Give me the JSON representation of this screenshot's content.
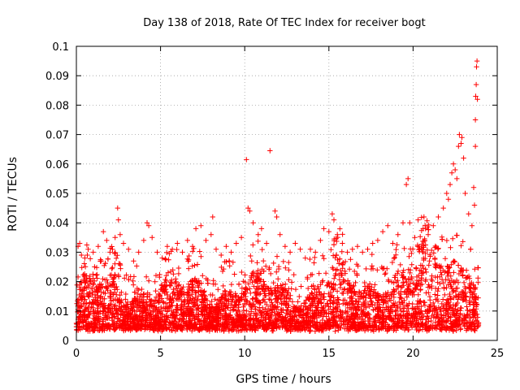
{
  "chart_data": {
    "type": "scatter",
    "title": "Day 138 of 2018, Rate Of TEC Index for receiver bogt",
    "xlabel": "GPS time / hours",
    "ylabel": "ROTI / TECUs",
    "xlim": [
      0,
      25
    ],
    "ylim": [
      0,
      0.1
    ],
    "xticks": [
      0,
      5,
      10,
      15,
      20,
      25
    ],
    "yticks": [
      0,
      0.01,
      0.02,
      0.03,
      0.04,
      0.05,
      0.06,
      0.07,
      0.08,
      0.09,
      0.1
    ],
    "xtick_labels": [
      "0",
      "5",
      "10",
      "15",
      "20",
      "25"
    ],
    "ytick_labels": [
      "0",
      "0.01",
      "0.02",
      "0.03",
      "0.04",
      "0.05",
      "0.06",
      "0.07",
      "0.08",
      "0.09",
      "0.1"
    ],
    "grid": true,
    "marker": "+",
    "marker_color": "#ff0000",
    "series": [
      {
        "name": "ROTI",
        "points": [
          [
            0.1,
            0.032
          ],
          [
            0.2,
            0.033
          ],
          [
            0.3,
            0.029
          ],
          [
            0.5,
            0.028
          ],
          [
            0.7,
            0.031
          ],
          [
            1.0,
            0.03
          ],
          [
            1.3,
            0.032
          ],
          [
            1.6,
            0.037
          ],
          [
            1.8,
            0.034
          ],
          [
            2.0,
            0.03
          ],
          [
            2.3,
            0.035
          ],
          [
            2.45,
            0.045
          ],
          [
            2.5,
            0.041
          ],
          [
            2.6,
            0.036
          ],
          [
            2.8,
            0.033
          ],
          [
            3.1,
            0.031
          ],
          [
            3.4,
            0.027
          ],
          [
            3.7,
            0.03
          ],
          [
            4.0,
            0.034
          ],
          [
            4.2,
            0.04
          ],
          [
            4.3,
            0.039
          ],
          [
            4.5,
            0.035
          ],
          [
            4.8,
            0.03
          ],
          [
            5.1,
            0.028
          ],
          [
            5.4,
            0.032
          ],
          [
            5.7,
            0.031
          ],
          [
            6.0,
            0.033
          ],
          [
            6.3,
            0.03
          ],
          [
            6.6,
            0.034
          ],
          [
            6.9,
            0.032
          ],
          [
            7.1,
            0.038
          ],
          [
            7.4,
            0.039
          ],
          [
            7.7,
            0.034
          ],
          [
            8.0,
            0.036
          ],
          [
            8.1,
            0.042
          ],
          [
            8.3,
            0.031
          ],
          [
            8.6,
            0.029
          ],
          [
            8.9,
            0.032
          ],
          [
            9.2,
            0.03
          ],
          [
            9.5,
            0.033
          ],
          [
            9.8,
            0.035
          ],
          [
            10.1,
            0.0615
          ],
          [
            10.2,
            0.045
          ],
          [
            10.3,
            0.044
          ],
          [
            10.5,
            0.04
          ],
          [
            10.8,
            0.036
          ],
          [
            11.0,
            0.038
          ],
          [
            11.3,
            0.033
          ],
          [
            11.5,
            0.0645
          ],
          [
            11.8,
            0.044
          ],
          [
            11.9,
            0.042
          ],
          [
            12.1,
            0.036
          ],
          [
            12.4,
            0.032
          ],
          [
            12.7,
            0.03
          ],
          [
            13.0,
            0.033
          ],
          [
            13.3,
            0.031
          ],
          [
            13.6,
            0.028
          ],
          [
            13.9,
            0.031
          ],
          [
            14.2,
            0.03
          ],
          [
            14.5,
            0.034
          ],
          [
            14.7,
            0.038
          ],
          [
            15.0,
            0.037
          ],
          [
            15.2,
            0.043
          ],
          [
            15.3,
            0.041
          ],
          [
            15.5,
            0.036
          ],
          [
            15.8,
            0.033
          ],
          [
            16.1,
            0.03
          ],
          [
            16.4,
            0.031
          ],
          [
            16.7,
            0.032
          ],
          [
            17.0,
            0.03
          ],
          [
            17.3,
            0.031
          ],
          [
            17.6,
            0.033
          ],
          [
            17.9,
            0.034
          ],
          [
            18.2,
            0.037
          ],
          [
            18.5,
            0.039
          ],
          [
            18.8,
            0.033
          ],
          [
            19.1,
            0.036
          ],
          [
            19.4,
            0.04
          ],
          [
            19.6,
            0.053
          ],
          [
            19.7,
            0.055
          ],
          [
            19.8,
            0.04
          ],
          [
            20.1,
            0.035
          ],
          [
            20.3,
            0.041
          ],
          [
            20.6,
            0.038
          ],
          [
            20.9,
            0.036
          ],
          [
            21.2,
            0.039
          ],
          [
            21.5,
            0.042
          ],
          [
            21.8,
            0.045
          ],
          [
            22.0,
            0.05
          ],
          [
            22.1,
            0.048
          ],
          [
            22.2,
            0.053
          ],
          [
            22.3,
            0.057
          ],
          [
            22.4,
            0.06
          ],
          [
            22.5,
            0.058
          ],
          [
            22.6,
            0.055
          ],
          [
            22.7,
            0.066
          ],
          [
            22.75,
            0.07
          ],
          [
            22.85,
            0.067
          ],
          [
            22.9,
            0.069
          ],
          [
            23.0,
            0.062
          ],
          [
            23.1,
            0.05
          ],
          [
            23.3,
            0.043
          ],
          [
            23.5,
            0.039
          ],
          [
            23.6,
            0.052
          ],
          [
            23.65,
            0.046
          ],
          [
            23.7,
            0.075
          ],
          [
            23.72,
            0.083
          ],
          [
            23.75,
            0.087
          ],
          [
            23.77,
            0.093
          ],
          [
            23.8,
            0.095
          ],
          [
            23.82,
            0.082
          ],
          [
            23.7,
            0.066
          ]
        ],
        "dense_band": {
          "description": "dense cloud of points",
          "x_range": [
            0,
            23.9
          ],
          "y_min": [
            0.003,
            0.005
          ],
          "y_typical_max": [
            0.025,
            0.035
          ]
        }
      }
    ]
  }
}
